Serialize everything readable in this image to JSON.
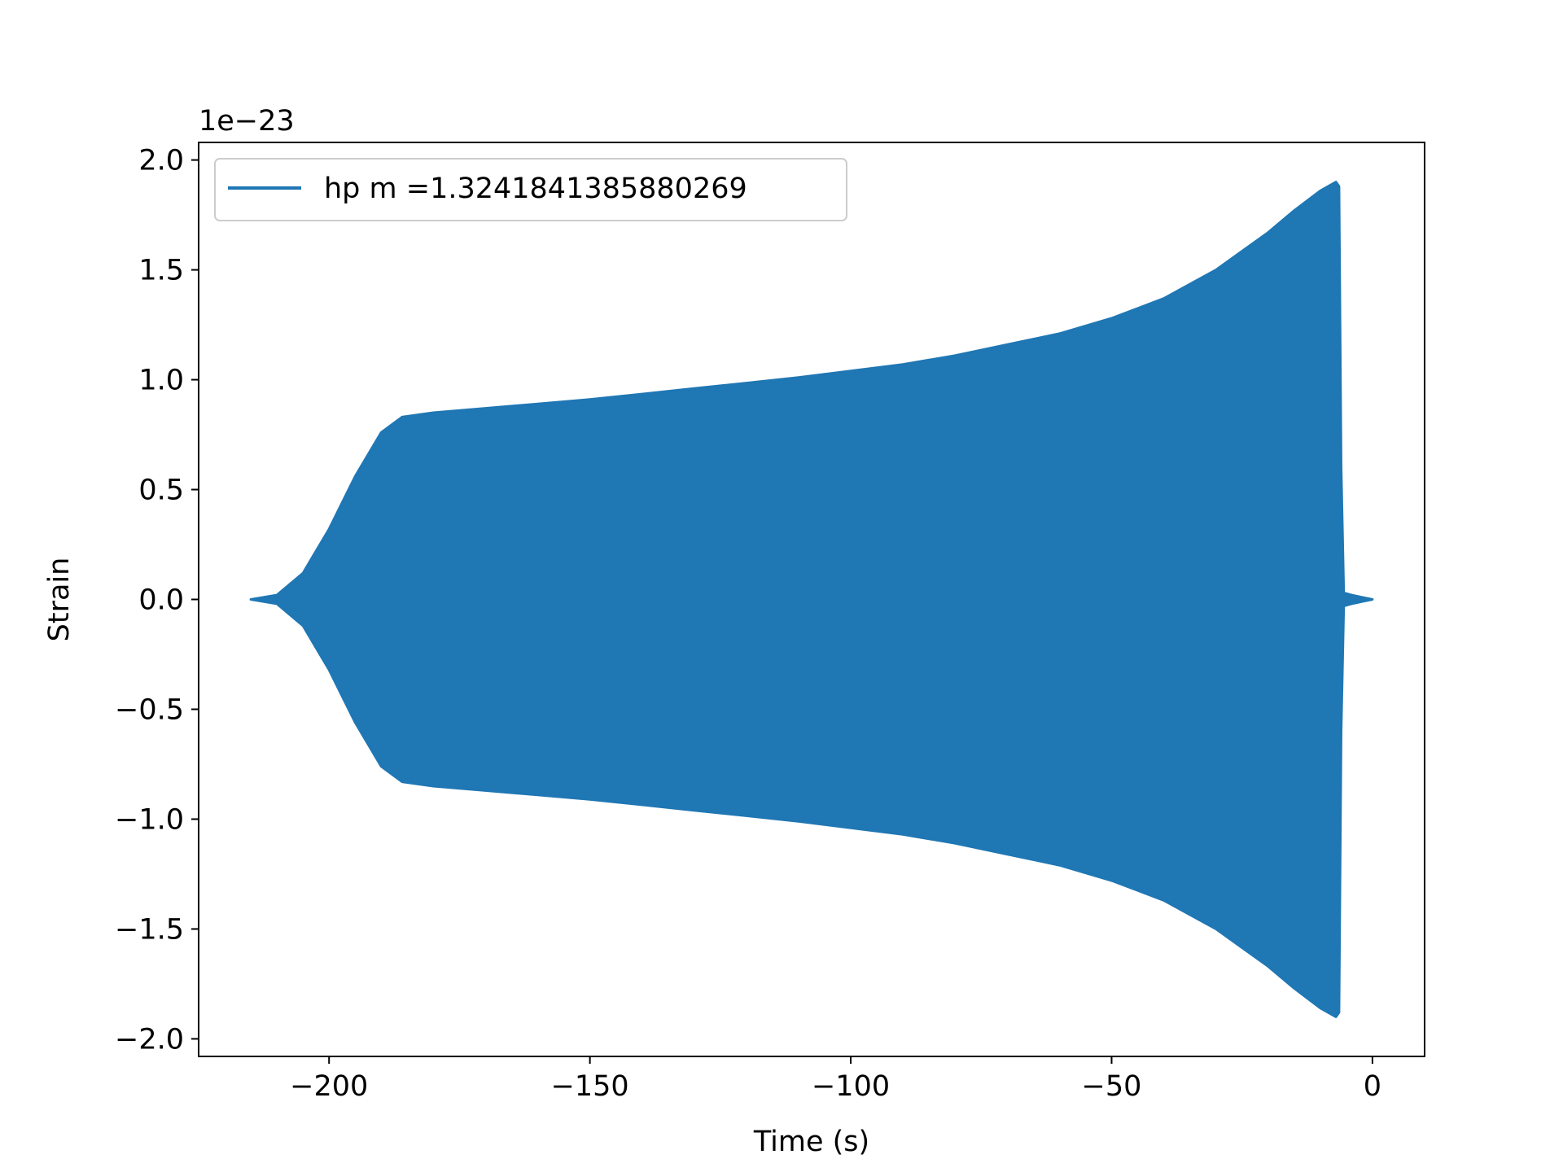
{
  "chart_data": {
    "type": "line",
    "xlabel": "Time (s)",
    "ylabel": "Strain",
    "y_offset_label": "1e−23",
    "y_scale_exponent": -23,
    "xlim": [
      -225,
      10
    ],
    "ylim": [
      -2.08,
      2.08
    ],
    "xticks": [
      -200,
      -150,
      -100,
      -50,
      0
    ],
    "xtick_labels": [
      "−200",
      "−150",
      "−100",
      "−50",
      "0"
    ],
    "yticks": [
      -2.0,
      -1.5,
      -1.0,
      -0.5,
      0.0,
      0.5,
      1.0,
      1.5,
      2.0
    ],
    "ytick_labels": [
      "−2.0",
      "−1.5",
      "−1.0",
      "−0.5",
      "0.0",
      "0.5",
      "1.0",
      "1.5",
      "2.0"
    ],
    "grid": false,
    "legend_position": "upper-left",
    "color": "#1f77b4",
    "series": [
      {
        "name": "hp m =1.3241841385880269",
        "envelope": {
          "t": [
            -215,
            -210,
            -205,
            -200,
            -195,
            -190,
            -186,
            -180,
            -170,
            -160,
            -150,
            -140,
            -130,
            -120,
            -110,
            -100,
            -90,
            -80,
            -70,
            -60,
            -50,
            -40,
            -30,
            -20,
            -15,
            -10,
            -7,
            -6.4,
            -6,
            -5.5,
            -4,
            -2,
            0
          ],
          "upper": [
            0.0,
            0.02,
            0.12,
            0.32,
            0.56,
            0.76,
            0.83,
            0.85,
            0.87,
            0.89,
            0.91,
            0.935,
            0.96,
            0.985,
            1.01,
            1.04,
            1.07,
            1.11,
            1.16,
            1.21,
            1.28,
            1.37,
            1.5,
            1.67,
            1.77,
            1.86,
            1.9,
            1.88,
            0.6,
            0.03,
            0.02,
            0.01,
            0.0
          ],
          "lower": [
            0.0,
            -0.02,
            -0.12,
            -0.32,
            -0.56,
            -0.76,
            -0.83,
            -0.85,
            -0.87,
            -0.89,
            -0.91,
            -0.935,
            -0.96,
            -0.985,
            -1.01,
            -1.04,
            -1.07,
            -1.11,
            -1.16,
            -1.21,
            -1.28,
            -1.37,
            -1.5,
            -1.67,
            -1.77,
            -1.86,
            -1.9,
            -1.88,
            -0.6,
            -0.03,
            -0.02,
            -0.01,
            0.0
          ]
        }
      }
    ]
  }
}
